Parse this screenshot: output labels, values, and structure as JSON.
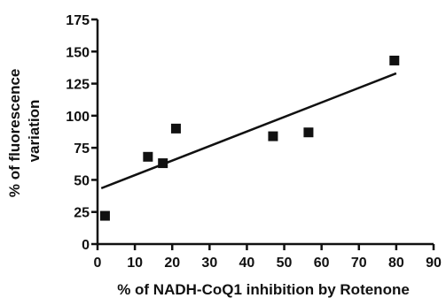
{
  "chart_data": {
    "type": "scatter",
    "title": "",
    "xlabel": "% of NADH-CoQ1 inhibition by Rotenone",
    "ylabel_lines": [
      "% of fluorescence",
      "variation"
    ],
    "xlim": [
      0,
      90
    ],
    "ylim": [
      0,
      175
    ],
    "x_ticks": [
      0,
      10,
      20,
      30,
      40,
      50,
      60,
      70,
      80,
      90
    ],
    "y_ticks": [
      0,
      25,
      50,
      75,
      100,
      125,
      150,
      175
    ],
    "grid": false,
    "legend": "none",
    "marker": "square",
    "marker_color": "#111111",
    "points": [
      {
        "x": 2,
        "y": 22
      },
      {
        "x": 13.5,
        "y": 68
      },
      {
        "x": 17.5,
        "y": 63
      },
      {
        "x": 21,
        "y": 90
      },
      {
        "x": 47,
        "y": 84
      },
      {
        "x": 56.5,
        "y": 87
      },
      {
        "x": 79.5,
        "y": 143
      }
    ],
    "trendline": {
      "x": [
        1,
        80
      ],
      "y": [
        43.5,
        133
      ]
    }
  }
}
